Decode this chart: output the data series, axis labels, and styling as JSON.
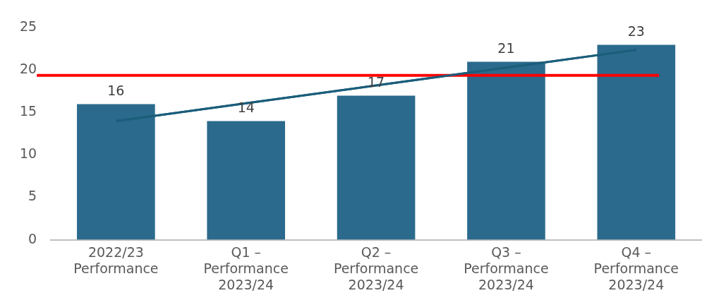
{
  "chart_data": {
    "type": "bar",
    "categories": [
      "2022/23\nPerformance",
      "Q1 –\nPerformance\n2023/24",
      "Q2 –\nPerformance\n2023/24",
      "Q3 –\nPerformance\n2023/24",
      "Q4 –\nPerformance\n2023/24"
    ],
    "series": [
      {
        "color": "#2b6a8c",
        "values": [
          16,
          14,
          17,
          21,
          23
        ],
        "value_labels": [
          "16",
          "14",
          "17",
          "21",
          "23"
        ]
      },
      {
        "type": "line",
        "color": "#1b5e7b",
        "values": [
          14,
          16.1,
          18.2,
          20.3,
          22.4
        ]
      }
    ],
    "ylim": [
      0,
      25
    ],
    "yticks": [
      0,
      5,
      10,
      15,
      20,
      25
    ],
    "grid": false,
    "legend": false,
    "marker": "none",
    "ref_lines": [
      {
        "axis": "y",
        "value": 19.4,
        "color": "#ff0000"
      }
    ]
  }
}
